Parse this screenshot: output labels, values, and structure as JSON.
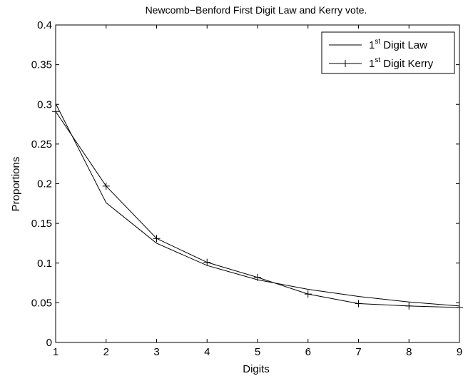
{
  "chart_data": {
    "type": "line",
    "title": "Newcomb−Benford First Digit Law and Kerry vote.",
    "xlabel": "Digits",
    "ylabel": "Proportions",
    "xlim": [
      1,
      9
    ],
    "ylim": [
      0,
      0.4
    ],
    "x_ticks": [
      1,
      2,
      3,
      4,
      5,
      6,
      7,
      8,
      9
    ],
    "x_tick_labels": [
      "1",
      "2",
      "3",
      "4",
      "5",
      "6",
      "7",
      "8",
      "9"
    ],
    "y_ticks": [
      0,
      0.05,
      0.1,
      0.15,
      0.2,
      0.25,
      0.3,
      0.35,
      0.4
    ],
    "y_tick_labels": [
      "0",
      "0.05",
      "0.1",
      "0.15",
      "0.2",
      "0.25",
      "0.3",
      "0.35",
      "0.4"
    ],
    "grid": false,
    "legend_position": "top-right",
    "x": [
      1,
      2,
      3,
      4,
      5,
      6,
      7,
      8,
      9
    ],
    "series": [
      {
        "name": "Digit Law",
        "name_prefix": "1",
        "name_sup": "st",
        "marker": "none",
        "color": "#000000",
        "values": [
          0.301,
          0.176,
          0.125,
          0.097,
          0.079,
          0.067,
          0.058,
          0.051,
          0.046
        ]
      },
      {
        "name": "Digit Kerry",
        "name_prefix": "1",
        "name_sup": "st",
        "marker": "plus",
        "color": "#000000",
        "values": [
          0.291,
          0.197,
          0.131,
          0.101,
          0.082,
          0.061,
          0.049,
          0.046,
          0.044
        ]
      }
    ]
  }
}
